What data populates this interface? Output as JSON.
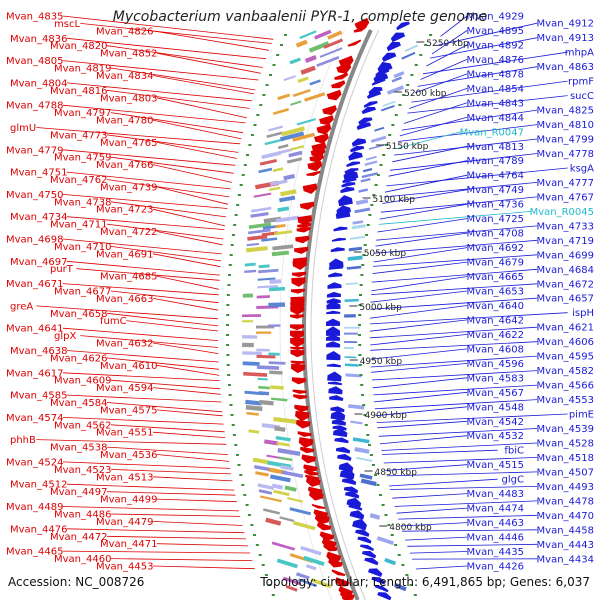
{
  "header": {
    "title": "Mycobacterium vanbaalenii PYR-1, complete genome"
  },
  "footer": {
    "accession": "Accession: NC_008726",
    "summary": "Topology: circular; Length: 6,491,865 bp; Genes: 6,037"
  },
  "colors": {
    "forward": "#dd0000",
    "reverse": "#1a1ad9",
    "rna": "#22b8cc",
    "backbone": "#888888",
    "tick": "#3a8c3a"
  },
  "scale_ticks": [
    "5250 kbp",
    "5200 kbp",
    "5150 kbp",
    "5100 kbp",
    "5050 kbp",
    "5000 kbp",
    "4950 kbp",
    "4900 kbp",
    "4850 kbp",
    "4800 kbp"
  ],
  "left_labels": [
    "Mvan_4835",
    "mscL",
    "Mvan_4826",
    "Mvan_4836",
    "Mvan_4820",
    "Mvan_4852",
    "Mvan_4805",
    "Mvan_4819",
    "Mvan_4834",
    "Mvan_4804",
    "Mvan_4816",
    "Mvan_4803",
    "Mvan_4788",
    "Mvan_4797",
    "Mvan_4780",
    "glmU",
    "Mvan_4773",
    "Mvan_4765",
    "Mvan_4779",
    "Mvan_4759",
    "Mvan_4766",
    "Mvan_4751",
    "Mvan_4762",
    "Mvan_4739",
    "Mvan_4750",
    "Mvan_4738",
    "Mvan_4723",
    "Mvan_4734",
    "Mvan_4711",
    "Mvan_4722",
    "Mvan_4698",
    "Mvan_4710",
    "Mvan_4691",
    "Mvan_4697",
    "purT",
    "Mvan_4685",
    "Mvan_4671",
    "Mvan_4677",
    "Mvan_4663",
    "greA",
    "Mvan_4658",
    "fumC",
    "Mvan_4641",
    "glpX",
    "Mvan_4632",
    "Mvan_4638",
    "Mvan_4626",
    "Mvan_4610",
    "Mvan_4617",
    "Mvan_4609",
    "Mvan_4594",
    "Mvan_4585",
    "Mvan_4584",
    "Mvan_4575",
    "Mvan_4574",
    "Mvan_4562",
    "Mvan_4551",
    "phhB",
    "Mvan_4538",
    "Mvan_4536",
    "Mvan_4524",
    "Mvan_4523",
    "Mvan_4513",
    "Mvan_4512",
    "Mvan_4497",
    "Mvan_4499",
    "Mvan_4489",
    "Mvan_4486",
    "Mvan_4479",
    "Mvan_4476",
    "Mvan_4472",
    "Mvan_4471",
    "Mvan_4465",
    "Mvan_4460",
    "Mvan_4453"
  ],
  "right_labels": [
    "Mvan_4929",
    "Mvan_4912",
    "Mvan_4895",
    "Mvan_4913",
    "Mvan_4892",
    "mhpA",
    "Mvan_4876",
    "Mvan_4863",
    "Mvan_4878",
    "rpmF",
    "Mvan_4854",
    "sucC",
    "Mvan_4843",
    "Mvan_4825",
    "Mvan_4844",
    "Mvan_4810",
    "Mvan_R0047",
    "Mvan_4799",
    "Mvan_4813",
    "Mvan_4778",
    "Mvan_4789",
    "ksgA",
    "Mvan_4764",
    "Mvan_4777",
    "Mvan_4749",
    "Mvan_4767",
    "Mvan_4736",
    "Mvan_R0045",
    "Mvan_4725",
    "Mvan_4733",
    "Mvan_4708",
    "Mvan_4719",
    "Mvan_4692",
    "Mvan_4699",
    "Mvan_4679",
    "Mvan_4684",
    "Mvan_4665",
    "Mvan_4672",
    "Mvan_4653",
    "Mvan_4657",
    "Mvan_4640",
    "ispH",
    "Mvan_4642",
    "Mvan_4621",
    "Mvan_4622",
    "Mvan_4606",
    "Mvan_4608",
    "Mvan_4595",
    "Mvan_4596",
    "Mvan_4582",
    "Mvan_4583",
    "Mvan_4566",
    "Mvan_4567",
    "Mvan_4553",
    "Mvan_4548",
    "pimE",
    "Mvan_4542",
    "Mvan_4539",
    "Mvan_4532",
    "Mvan_4528",
    "fbiC",
    "Mvan_4518",
    "Mvan_4515",
    "Mvan_4507",
    "glgC",
    "Mvan_4493",
    "Mvan_4483",
    "Mvan_4478",
    "Mvan_4474",
    "Mvan_4470",
    "Mvan_4463",
    "Mvan_4458",
    "Mvan_4446",
    "Mvan_4443",
    "Mvan_4435",
    "Mvan_4434",
    "Mvan_4426"
  ],
  "rna_labels": [
    "Mvan_R0047",
    "Mvan_R0045"
  ]
}
